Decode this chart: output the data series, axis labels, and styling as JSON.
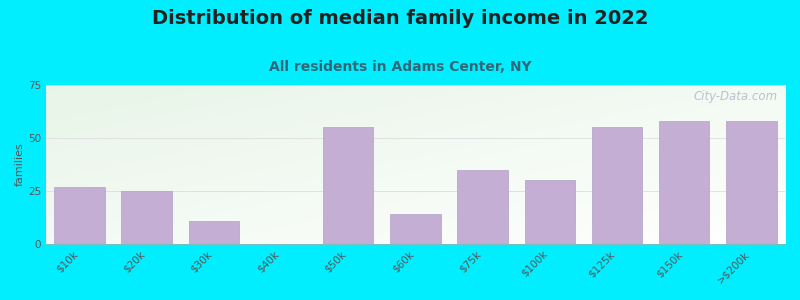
{
  "title": "Distribution of median family income in 2022",
  "subtitle": "All residents in Adams Center, NY",
  "categories": [
    "$10k",
    "$20k",
    "$30k",
    "$40k",
    "$50k",
    "$60k",
    "$75k",
    "$100k",
    "$125k",
    "$150k",
    ">$200k"
  ],
  "values": [
    27,
    25,
    11,
    0,
    55,
    14,
    35,
    30,
    55,
    58,
    58
  ],
  "bar_color": "#c4aed4",
  "bar_edge_color": "#b0a0c8",
  "background_outer": "#00eeff",
  "ylabel": "families",
  "ylim": [
    0,
    75
  ],
  "yticks": [
    0,
    25,
    50,
    75
  ],
  "title_fontsize": 14,
  "title_color": "#222222",
  "subtitle_fontsize": 10,
  "subtitle_color": "#336677",
  "tick_color": "#555555",
  "tick_fontsize": 7.5,
  "ylabel_fontsize": 8,
  "watermark": "City-Data.com",
  "watermark_color": "#b0b8c8",
  "grid_color": "#dddddd",
  "bg_gradient_colors": [
    "#e8f5e8",
    "#f8fff8",
    "#ffffff",
    "#f5f8ff"
  ],
  "bar_width": 0.75
}
